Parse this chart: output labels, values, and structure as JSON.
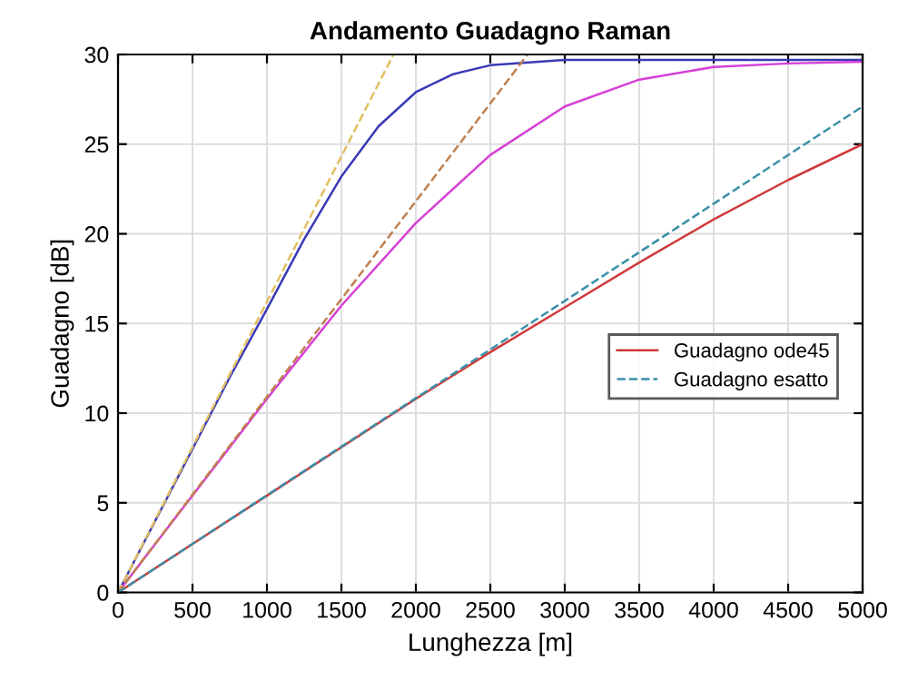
{
  "chart_data": {
    "type": "line",
    "title": "Andamento Guadagno Raman",
    "xlabel": "Lunghezza [m]",
    "ylabel": "Guadagno [dB]",
    "xlim": [
      0,
      5000
    ],
    "ylim": [
      0,
      30
    ],
    "xticks": [
      0,
      500,
      1000,
      1500,
      2000,
      2500,
      3000,
      3500,
      4000,
      4500,
      5000
    ],
    "yticks": [
      0,
      5,
      10,
      15,
      20,
      25,
      30
    ],
    "grid": true,
    "legend": "right",
    "series": [
      {
        "color": "#3a3ab8",
        "line_style": "solid",
        "x": [
          0,
          250,
          500,
          750,
          1000,
          1250,
          1500,
          1750,
          2000,
          2250,
          2500,
          3000,
          3500,
          4000,
          5000
        ],
        "values": [
          0,
          4,
          8,
          12,
          15.8,
          19.7,
          23.2,
          26,
          27.9,
          28.9,
          29.4,
          29.7,
          29.7,
          29.7,
          29.7
        ]
      },
      {
        "color": "#d63fd6",
        "line_style": "solid",
        "x": [
          0,
          500,
          1000,
          1500,
          2000,
          2500,
          3000,
          3500,
          4000,
          4500,
          5000
        ],
        "values": [
          0,
          5.4,
          10.8,
          16,
          20.6,
          24.4,
          27.1,
          28.6,
          29.3,
          29.5,
          29.6
        ]
      },
      {
        "name": "Guadagno ode45",
        "color": "#d03a3a",
        "line_style": "solid",
        "x": [
          0,
          1000,
          2000,
          2500,
          3000,
          3500,
          4000,
          4500,
          5000
        ],
        "values": [
          0,
          5.4,
          10.8,
          13.4,
          15.9,
          18.4,
          20.8,
          23,
          25
        ]
      },
      {
        "color": "#e0c060",
        "line_style": "dashed",
        "x": [
          0,
          1850
        ],
        "values": [
          0,
          30
        ]
      },
      {
        "color": "#c08050",
        "line_style": "dashed",
        "x": [
          0,
          2750
        ],
        "values": [
          0,
          30
        ]
      },
      {
        "name": "Guadagno esatto",
        "color": "#3a90a8",
        "line_style": "dashed",
        "x": [
          0,
          5000
        ],
        "values": [
          0,
          27.1
        ]
      }
    ]
  }
}
